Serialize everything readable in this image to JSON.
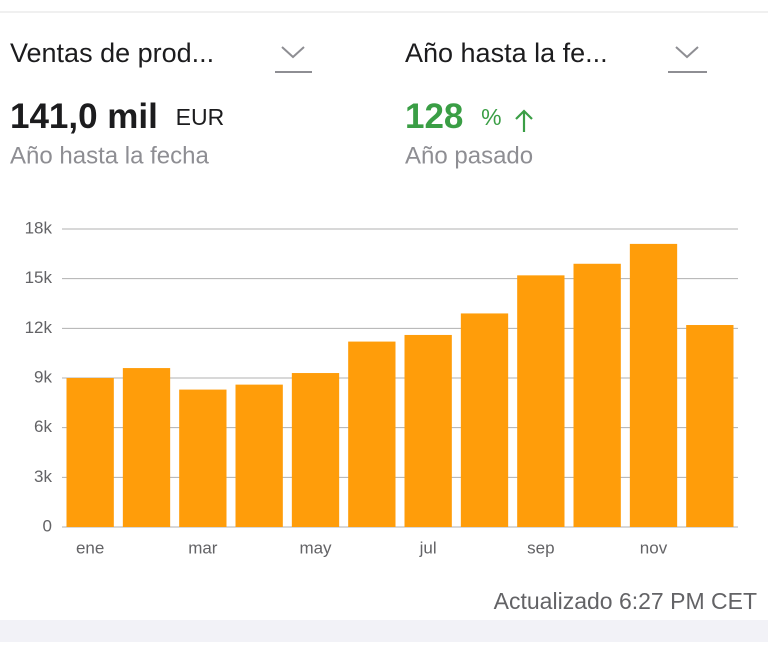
{
  "header": {
    "left_menu": "Ventas de prod...",
    "right_menu": "Año hasta la fe...",
    "left_value": "141,0 mil",
    "left_unit": "EUR",
    "left_caption": "Año hasta la fecha",
    "right_value": "128",
    "right_unit": "%",
    "right_caption": "Año pasado"
  },
  "chart_data": {
    "type": "bar",
    "categories": [
      "ene",
      null,
      "mar",
      null,
      "may",
      null,
      "jul",
      null,
      "sep",
      null,
      "nov",
      null
    ],
    "values": [
      9000,
      9600,
      8300,
      8600,
      9300,
      11200,
      11600,
      12900,
      15200,
      15900,
      17100,
      12200
    ],
    "color": "#ff9d0a",
    "ylim": [
      0,
      18000
    ],
    "yticks": [
      0,
      {
        "value": 3000,
        "label": "3k"
      },
      {
        "value": 6000,
        "label": "6k"
      },
      {
        "value": 9000,
        "label": "9k"
      },
      {
        "value": 12000,
        "label": "12k"
      },
      {
        "value": 15000,
        "label": "15k"
      },
      {
        "value": 18000,
        "label": "18k"
      }
    ],
    "grid": true
  },
  "footer": {
    "updated": "Actualizado 6:27 PM CET"
  }
}
